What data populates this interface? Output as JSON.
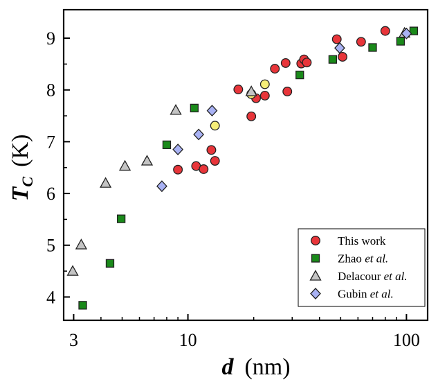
{
  "chart_data": {
    "type": "scatter",
    "title": "",
    "xlabel": {
      "symbol": "d",
      "unit": "(nm)"
    },
    "ylabel": {
      "symbol": "T",
      "subscript": "C",
      "unit": "(K)"
    },
    "xscale": "log",
    "xlim": [
      2.7,
      125
    ],
    "ylim": [
      3.55,
      9.55
    ],
    "xticks": [
      3,
      10,
      100
    ],
    "xtick_labels": [
      "3",
      "10",
      "100"
    ],
    "yticks": [
      4,
      5,
      6,
      7,
      8,
      9
    ],
    "ytick_labels": [
      "4",
      "5",
      "6",
      "7",
      "8",
      "9"
    ],
    "grid": false,
    "legend_position": "bottom-right",
    "series": [
      {
        "name": "This work",
        "name_parts": [
          {
            "text": "This work",
            "italic": false
          }
        ],
        "marker": "circle",
        "color": "#e8353a",
        "points": [
          {
            "x": 9.0,
            "y": 6.46
          },
          {
            "x": 10.9,
            "y": 6.53
          },
          {
            "x": 11.8,
            "y": 6.47
          },
          {
            "x": 12.8,
            "y": 6.84
          },
          {
            "x": 13.3,
            "y": 6.63
          },
          {
            "x": 17.0,
            "y": 8.01
          },
          {
            "x": 19.5,
            "y": 7.49
          },
          {
            "x": 20.5,
            "y": 7.84
          },
          {
            "x": 22.5,
            "y": 7.89
          },
          {
            "x": 25.0,
            "y": 8.41
          },
          {
            "x": 28.0,
            "y": 8.52
          },
          {
            "x": 28.5,
            "y": 7.97
          },
          {
            "x": 33.0,
            "y": 8.51
          },
          {
            "x": 34.0,
            "y": 8.59
          },
          {
            "x": 35.0,
            "y": 8.53
          },
          {
            "x": 48.0,
            "y": 8.98
          },
          {
            "x": 51.0,
            "y": 8.64
          },
          {
            "x": 62.0,
            "y": 8.93
          },
          {
            "x": 80.0,
            "y": 9.14
          }
        ]
      },
      {
        "name": "This work (yellow)",
        "name_parts": [],
        "in_legend": false,
        "marker": "circle",
        "color": "#f6ee78",
        "points": [
          {
            "x": 13.3,
            "y": 7.31
          },
          {
            "x": 19.5,
            "y": 7.92
          },
          {
            "x": 22.5,
            "y": 8.11
          }
        ]
      },
      {
        "name": "Zhao et al.",
        "name_parts": [
          {
            "text": "Zhao ",
            "italic": false
          },
          {
            "text": "et al.",
            "italic": true
          }
        ],
        "marker": "square",
        "color": "#1a8a1a",
        "points": [
          {
            "x": 3.3,
            "y": 3.84
          },
          {
            "x": 4.4,
            "y": 4.65
          },
          {
            "x": 4.95,
            "y": 5.51
          },
          {
            "x": 8.0,
            "y": 6.94
          },
          {
            "x": 10.7,
            "y": 7.65
          },
          {
            "x": 32.5,
            "y": 8.29
          },
          {
            "x": 46.0,
            "y": 8.59
          },
          {
            "x": 70.0,
            "y": 8.82
          },
          {
            "x": 94.0,
            "y": 8.94
          },
          {
            "x": 108.0,
            "y": 9.14
          }
        ]
      },
      {
        "name": "Delacour et al.",
        "name_parts": [
          {
            "text": "Delacour ",
            "italic": false
          },
          {
            "text": "et al.",
            "italic": true
          }
        ],
        "marker": "triangle",
        "color": "#c4c4c4",
        "points": [
          {
            "x": 2.97,
            "y": 4.5
          },
          {
            "x": 3.25,
            "y": 5.01
          },
          {
            "x": 4.2,
            "y": 6.2
          },
          {
            "x": 5.15,
            "y": 6.53
          },
          {
            "x": 6.5,
            "y": 6.63
          },
          {
            "x": 8.8,
            "y": 7.61
          },
          {
            "x": 19.5,
            "y": 7.97
          },
          {
            "x": 98.0,
            "y": 9.1
          }
        ]
      },
      {
        "name": "Gubin et al.",
        "name_parts": [
          {
            "text": "Gubin ",
            "italic": false
          },
          {
            "text": "et al.",
            "italic": true
          }
        ],
        "marker": "diamond",
        "color": "#a9b2f4",
        "points": [
          {
            "x": 7.6,
            "y": 6.14
          },
          {
            "x": 9.0,
            "y": 6.85
          },
          {
            "x": 11.2,
            "y": 7.14
          },
          {
            "x": 12.9,
            "y": 7.6
          },
          {
            "x": 49.5,
            "y": 8.81
          },
          {
            "x": 100.0,
            "y": 9.09
          }
        ]
      }
    ]
  }
}
